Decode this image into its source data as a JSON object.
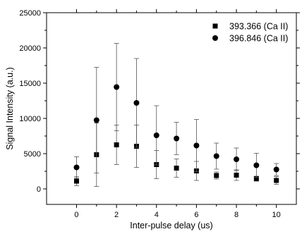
{
  "chart_data": {
    "type": "scatter",
    "xlabel": "Inter-pulse delay (us)",
    "ylabel": "Signal Intensity (a.u.)",
    "xlim": [
      -1.5,
      11
    ],
    "ylim": [
      -2200,
      25000
    ],
    "xticks": [
      "0",
      "2",
      "4",
      "6",
      "8",
      "10"
    ],
    "yticks": [
      "0",
      "5000",
      "10000",
      "15000",
      "20000",
      "25000"
    ],
    "grid": false,
    "legend": "top-right",
    "error_bars": true,
    "series": [
      {
        "name": "393.366 (Ca II)",
        "marker": "square",
        "x": [
          0,
          1,
          2,
          3,
          4,
          5,
          6,
          7,
          8,
          9,
          10
        ],
        "y": [
          1100,
          4850,
          6250,
          6050,
          3450,
          2950,
          2550,
          1900,
          1950,
          1450,
          1200
        ],
        "err": [
          650,
          4500,
          2800,
          3000,
          2000,
          1300,
          1350,
          500,
          750,
          350,
          550
        ]
      },
      {
        "name": "396.846 (Ca II)",
        "marker": "circle",
        "x": [
          0,
          1,
          2,
          3,
          4,
          5,
          6,
          7,
          8,
          9,
          10
        ],
        "y": [
          3050,
          9750,
          14450,
          12200,
          7600,
          7150,
          6150,
          4650,
          4200,
          3350,
          2750
        ],
        "err": [
          1500,
          7500,
          6200,
          6300,
          4200,
          2300,
          3700,
          1850,
          1600,
          1700,
          850
        ]
      }
    ]
  }
}
